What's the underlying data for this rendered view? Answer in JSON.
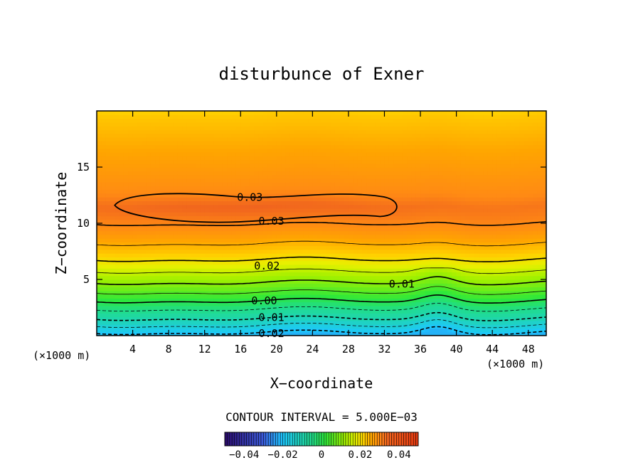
{
  "chart_data": {
    "type": "contour",
    "title": "disturbunce of Exner",
    "xlabel": "X−coordinate",
    "ylabel": "Z−coordinate",
    "x_unit": "(×1000 m)",
    "z_unit": "(×1000 m)",
    "xlim": [
      0,
      50
    ],
    "ylim": [
      0,
      20
    ],
    "x_ticks": [
      4,
      8,
      12,
      16,
      20,
      24,
      28,
      32,
      36,
      40,
      44,
      48
    ],
    "y_ticks": [
      5,
      10,
      15
    ],
    "contour_interval_text": "CONTOUR INTERVAL = 5.000E−03",
    "contour_labels": [
      {
        "text": "0.03",
        "x": 15.6,
        "z": 12.3
      },
      {
        "text": "0.03",
        "x": 18.0,
        "z": 10.2
      },
      {
        "text": "0.02",
        "x": 17.5,
        "z": 6.2
      },
      {
        "text": "0.01",
        "x": 32.5,
        "z": 4.6
      },
      {
        "text": "0.00",
        "x": 17.2,
        "z": 3.1
      },
      {
        "text": "0.01",
        "x": 18.0,
        "z": 1.6
      },
      {
        "text": "0.02",
        "x": 18.0,
        "z": 0.2
      }
    ],
    "profile": {
      "z": [
        0,
        0.5,
        1.5,
        2.5,
        3.5,
        4.5,
        5.5,
        6.5,
        7.5,
        8.5,
        9.5,
        10.5,
        11.5,
        12.5,
        13.5,
        14.5,
        15.5,
        16.5,
        17.5,
        18.5,
        19.5,
        20
      ],
      "val": [
        -0.022,
        -0.018,
        -0.01,
        -0.004,
        0.003,
        0.009,
        0.014,
        0.019,
        0.023,
        0.026,
        0.029,
        0.031,
        0.032,
        0.03,
        0.029,
        0.028,
        0.027,
        0.026,
        0.025,
        0.024,
        0.023,
        0.022
      ]
    },
    "colorbar": {
      "range": [
        -0.05,
        0.05
      ],
      "ticks": [
        {
          "value": -0.04,
          "text": "−0.04"
        },
        {
          "value": -0.02,
          "text": "−0.02"
        },
        {
          "value": 0,
          "text": "0"
        },
        {
          "value": 0.02,
          "text": "0.02"
        },
        {
          "value": 0.04,
          "text": "0.04"
        }
      ]
    },
    "colors": {
      "low": "#2a0a6b",
      "mid_cyan": "#1ec8ff",
      "mid_green": "#2ee83a",
      "mid_yellow": "#e8f000",
      "orange": "#ffa500",
      "high": "#f0641e",
      "top": "#e83a10"
    }
  }
}
